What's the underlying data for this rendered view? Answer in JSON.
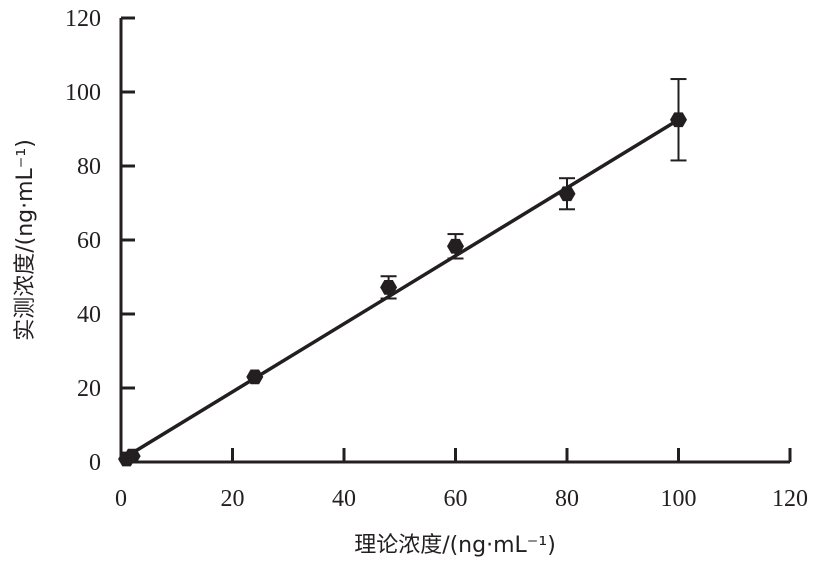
{
  "chart_data": {
    "type": "scatter",
    "xlabel": "理论浓度/(ng·mL⁻¹)",
    "ylabel": "实测浓度/(ng·mL⁻¹)",
    "xlim": [
      0,
      120
    ],
    "ylim": [
      0,
      120
    ],
    "xticks": [
      0,
      20,
      40,
      60,
      80,
      100,
      120
    ],
    "yticks": [
      0,
      20,
      40,
      60,
      80,
      100,
      120
    ],
    "grid": false,
    "legend": "none",
    "series": [
      {
        "points": [
          {
            "x": 1,
            "y": 0.8,
            "err": 0
          },
          {
            "x": 2,
            "y": 1.6,
            "err": 0
          },
          {
            "x": 24,
            "y": 23,
            "err": 0
          },
          {
            "x": 48,
            "y": 47.2,
            "err": 3
          },
          {
            "x": 60,
            "y": 58.3,
            "err": 3.3
          },
          {
            "x": 80,
            "y": 72.5,
            "err": 4.2
          },
          {
            "x": 100,
            "y": 92.5,
            "err": 11
          }
        ]
      }
    ],
    "fit_line": {
      "x": [
        1,
        100
      ],
      "y": [
        1.5,
        92.5
      ]
    },
    "colors": {
      "ink": "#231f20"
    }
  }
}
